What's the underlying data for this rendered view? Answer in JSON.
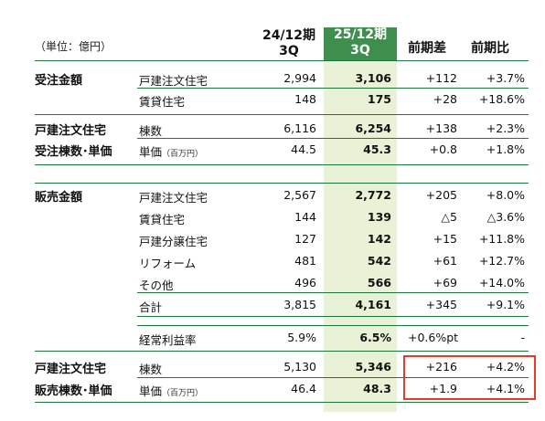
{
  "header": {
    "unit": "（単位：億円）",
    "col_prev": [
      "24/12期",
      "3Q"
    ],
    "col_curr": [
      "25/12期",
      "3Q"
    ],
    "col_diff": "前期差",
    "col_ratio": "前期比"
  },
  "rows": [
    {
      "section": "受注金額",
      "label": "戸建注文住宅",
      "prev": "2,994",
      "curr": "3,106",
      "diff": "+112",
      "ratio": "+3.7%"
    },
    {
      "section": "",
      "label": "賃貸住宅",
      "prev": "148",
      "curr": "175",
      "diff": "+28",
      "ratio": "+18.6%"
    },
    {
      "section": "戸建注文住宅",
      "label": "棟数",
      "prev": "6,116",
      "curr": "6,254",
      "diff": "+138",
      "ratio": "+2.3%"
    },
    {
      "section": "受注棟数･単価",
      "label": "単価",
      "label_note": "（百万円）",
      "prev": "44.5",
      "curr": "45.3",
      "diff": "+0.8",
      "ratio": "+1.8%"
    },
    {
      "section": "販売金額",
      "label": "戸建注文住宅",
      "prev": "2,567",
      "curr": "2,772",
      "diff": "+205",
      "ratio": "+8.0%"
    },
    {
      "section": "",
      "label": "賃貸住宅",
      "prev": "144",
      "curr": "139",
      "diff": "△5",
      "ratio": "△3.6%"
    },
    {
      "section": "",
      "label": "戸建分譲住宅",
      "prev": "127",
      "curr": "142",
      "diff": "+15",
      "ratio": "+11.8%"
    },
    {
      "section": "",
      "label": "リフォーム",
      "prev": "481",
      "curr": "542",
      "diff": "+61",
      "ratio": "+12.7%"
    },
    {
      "section": "",
      "label": "その他",
      "prev": "496",
      "curr": "566",
      "diff": "+69",
      "ratio": "+14.0%"
    },
    {
      "section": "",
      "label": "合計",
      "prev": "3,815",
      "curr": "4,161",
      "diff": "+345",
      "ratio": "+9.1%"
    },
    {
      "section": "",
      "label": "経常利益率",
      "prev": "5.9%",
      "curr": "6.5%",
      "diff": "+0.6%pt",
      "ratio": "-"
    },
    {
      "section": "戸建注文住宅",
      "label": "棟数",
      "prev": "5,130",
      "curr": "5,346",
      "diff": "+216",
      "ratio": "+4.2%"
    },
    {
      "section": "販売棟数･単価",
      "label": "単価",
      "label_note": "（百万円）",
      "prev": "46.4",
      "curr": "48.3",
      "diff": "+1.9",
      "ratio": "+4.1%"
    }
  ],
  "colors": {
    "accent_green": "#3e8f4e",
    "highlight": "#e9f2d6",
    "rule_green": "#1b7a3a",
    "callout_red": "#e53a23"
  }
}
